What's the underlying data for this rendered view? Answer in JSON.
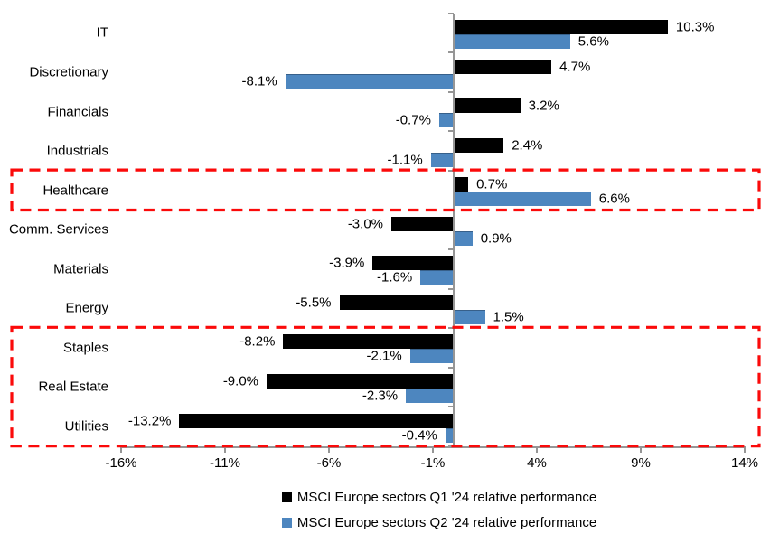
{
  "chart_data": {
    "type": "bar",
    "orientation": "horizontal",
    "title": "",
    "categories": [
      "IT",
      "Discretionary",
      "Financials",
      "Industrials",
      "Healthcare",
      "Comm. Services",
      "Materials",
      "Energy",
      "Staples",
      "Real Estate",
      "Utilities"
    ],
    "series": [
      {
        "name": "MSCI Europe sectors Q1 '24 relative performance",
        "color": "#000000",
        "values": [
          10.3,
          4.7,
          3.2,
          2.4,
          0.7,
          -3.0,
          -3.9,
          -5.5,
          -8.2,
          -9.0,
          -13.2
        ]
      },
      {
        "name": "MSCI Europe sectors Q2 '24 relative performance",
        "color": "#4D86BF",
        "values": [
          5.6,
          -8.1,
          -0.7,
          -1.1,
          6.6,
          0.9,
          -1.6,
          1.5,
          -2.1,
          -2.3,
          -0.4
        ]
      }
    ],
    "x_axis": {
      "tick_values": [
        -16,
        -11,
        -6,
        -1,
        4,
        9,
        14
      ],
      "tick_labels": [
        "-16%",
        "-11%",
        "-6%",
        "-1%",
        "4%",
        "9%",
        "14%"
      ],
      "min": -16,
      "max": 14
    },
    "value_label_format": "one_decimal_percent",
    "data_labels_shown": true,
    "grid": false,
    "legend_position": "bottom",
    "axis_color": "#969696",
    "highlight_color": "#FB0A0A",
    "highlights": [
      {
        "id": "healthcare-highlight",
        "from_sector": "Healthcare",
        "to_sector": "Healthcare"
      },
      {
        "id": "defensives-highlight",
        "from_sector": "Staples",
        "to_sector": "Utilities"
      }
    ]
  }
}
